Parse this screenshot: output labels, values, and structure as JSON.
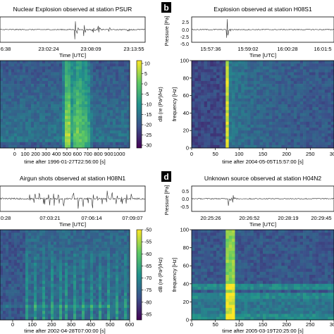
{
  "figure": {
    "panels": [
      {
        "letter": "",
        "title": "Nuclear Explosion observed at station PSUR",
        "wave_ylabel": "",
        "wave_yticks": [],
        "time_ticks": [
          "6:38",
          "23:02:24",
          "23:08:09",
          "23:13:55"
        ],
        "time_label": "Time [UTC]",
        "spec_yticks": [],
        "spec_ylabel": "",
        "spec_xticks": [
          "0",
          "100",
          "200",
          "300",
          "400",
          "500",
          "600",
          "700",
          "800",
          "900",
          "1000"
        ],
        "spec_xlabel": "time after 1996-01-27T22:56:00 [s]",
        "colorbar_ticks": [
          "10",
          "5",
          "0",
          "-5",
          "-10",
          "-15",
          "-20",
          "-25",
          "-30"
        ],
        "colorbar_label": "dB (re (Pa²)/Hz)"
      },
      {
        "letter": "b",
        "title": "Explosion observed at station H08S1",
        "wave_ylabel": "Pressure [Pa]",
        "wave_yticks": [
          "2.5",
          "0.0",
          "-2.5",
          "-5.0"
        ],
        "time_ticks": [
          "15:57:36",
          "15:59:02",
          "16:00:28",
          "16:01:5"
        ],
        "time_label": "Time [UTC]",
        "spec_yticks": [
          "100",
          "80",
          "60",
          "40",
          "20",
          "0"
        ],
        "spec_ylabel": "frequency [Hz]",
        "spec_xticks": [
          "0",
          "50",
          "100",
          "150",
          "200",
          "250",
          "300"
        ],
        "spec_xlabel": "time after 2004-05-05T15:57:00 [s]",
        "colorbar_ticks": [],
        "colorbar_label": ""
      },
      {
        "letter": "",
        "title": "Airgun shots observed at station H08N1",
        "wave_ylabel": "",
        "wave_yticks": [],
        "time_ticks": [
          "0:28",
          "07:03:21",
          "07:06:14",
          "07:09:07"
        ],
        "time_label": "Time [UTC]",
        "spec_yticks": [],
        "spec_ylabel": "",
        "spec_xticks": [
          "0",
          "100",
          "200",
          "300",
          "400",
          "500",
          "600"
        ],
        "spec_xlabel": "time after 2002-04-28T07:00:00 [s]",
        "colorbar_ticks": [
          "-50",
          "-55",
          "-60",
          "-65",
          "-70",
          "-75",
          "-80",
          "-85"
        ],
        "colorbar_label": "dB (re (Pa²)/Hz)"
      },
      {
        "letter": "d",
        "title": "Unknown source observed at station H04N2",
        "wave_ylabel": "Pressure [Pa]",
        "wave_yticks": [
          "0.5",
          "0.0",
          "-0.5"
        ],
        "time_ticks": [
          "20:25:26",
          "20:26:52",
          "20:28:19",
          "20:29:45"
        ],
        "time_label": "Time [UTC]",
        "spec_yticks": [
          "100",
          "80",
          "60",
          "40",
          "20",
          "0"
        ],
        "spec_ylabel": "frequency [Hz]",
        "spec_xticks": [
          "0",
          "50",
          "100",
          "150",
          "200",
          "250",
          "300"
        ],
        "spec_xlabel": "time after 2005-03-19T20:25:00 [s]",
        "colorbar_ticks": [],
        "colorbar_label": ""
      }
    ]
  },
  "colors": {
    "viridis": [
      "#440154",
      "#3b528b",
      "#21918c",
      "#5ec962",
      "#fde725"
    ],
    "waveform": "#333333",
    "axis": "#000000",
    "letter_bg": "#000000",
    "letter_fg": "#ffffff"
  },
  "chart_data": [
    {
      "type": "heatmap",
      "title": "Nuclear Explosion observed at station PSUR",
      "xlabel": "time after 1996-01-27T22:56:00 [s]",
      "ylabel": "",
      "xlim": [
        0,
        1100
      ],
      "ylim": [
        0,
        100
      ],
      "color_label": "dB (re (Pa²)/Hz)",
      "color_range": [
        -30,
        10
      ],
      "events": [
        {
          "t": 570,
          "strength": 1.0
        },
        {
          "t": 640,
          "strength": 0.7
        },
        {
          "t": 700,
          "strength": 0.55
        },
        {
          "t": 745,
          "strength": 0.45
        }
      ],
      "waveform_events": [
        {
          "t": 570,
          "amp": 1.0
        },
        {
          "t": 640,
          "amp": 0.55
        },
        {
          "t": 700,
          "amp": 0.45
        },
        {
          "t": 745,
          "amp": 0.35
        },
        {
          "t": 830,
          "amp": 0.25
        },
        {
          "t": 970,
          "amp": 0.18
        }
      ]
    },
    {
      "type": "heatmap",
      "title": "Explosion observed at station H08S1",
      "xlabel": "time after 2004-05-05T15:57:00 [s]",
      "ylabel": "frequency [Hz]",
      "xlim": [
        0,
        300
      ],
      "ylim": [
        0,
        100
      ],
      "waveform_ylabel": "Pressure [Pa]",
      "waveform_ylim": [
        -5.0,
        3.5
      ],
      "events": [
        {
          "t": 75,
          "strength": 1.0
        }
      ],
      "waveform_events": [
        {
          "t": 75,
          "amp": 4.5
        }
      ]
    },
    {
      "type": "heatmap",
      "title": "Airgun shots observed at station H08N1",
      "xlabel": "time after 2002-04-28T07:00:00 [s]",
      "ylabel": "",
      "xlim": [
        0,
        600
      ],
      "ylim": [
        0,
        100
      ],
      "color_label": "dB (re (Pa²)/Hz)",
      "color_range": [
        -85,
        -50
      ],
      "shot_start": 120,
      "shot_interval": 20,
      "shot_count": 22
    },
    {
      "type": "heatmap",
      "title": "Unknown source observed at station H04N2",
      "xlabel": "time after 2005-03-19T20:25:00 [s]",
      "ylabel": "frequency [Hz]",
      "xlim": [
        0,
        300
      ],
      "ylim": [
        0,
        100
      ],
      "waveform_ylabel": "Pressure [Pa]",
      "waveform_ylim": [
        -0.8,
        0.8
      ],
      "events": [
        {
          "t": 82,
          "strength": 1.0
        }
      ],
      "waveform_events": [
        {
          "t": 78,
          "amp": 0.55
        },
        {
          "t": 86,
          "amp": 0.45
        }
      ]
    }
  ]
}
